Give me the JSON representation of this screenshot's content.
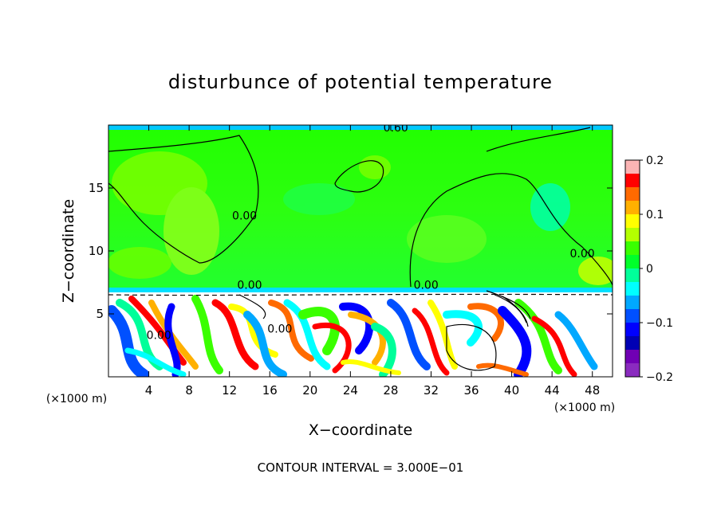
{
  "chart_data": {
    "type": "heatmap",
    "title": "disturbunce of potential temperature",
    "xlabel": "X−coordinate",
    "ylabel": "Z−coordinate",
    "x_unit": "(×1000 m)",
    "xlim": [
      0,
      50
    ],
    "ylim": [
      0,
      20
    ],
    "x_ticks": [
      4,
      8,
      12,
      16,
      20,
      24,
      28,
      32,
      36,
      40,
      44,
      48
    ],
    "y_ticks": [
      5,
      10,
      15
    ],
    "footer": "CONTOUR INTERVAL = 3.000E−01",
    "contour_labels": [
      {
        "text": "0.60",
        "x": 28.5,
        "z": 19.5
      },
      {
        "text": "0.00",
        "x": 13.5,
        "z": 12.5
      },
      {
        "text": "0.00",
        "x": 47.0,
        "z": 9.5
      },
      {
        "text": "0.00",
        "x": 31.5,
        "z": 7.0
      },
      {
        "text": "0.00",
        "x": 14.0,
        "z": 7.0
      },
      {
        "text": "0.00",
        "x": 5.0,
        "z": 3.0
      },
      {
        "text": "0.00",
        "x": 17.0,
        "z": 3.5
      }
    ],
    "colorbar": {
      "min": -0.2,
      "max": 0.2,
      "tick_values": [
        0.2,
        0.1,
        0,
        -0.1,
        -0.2
      ],
      "tick_labels": [
        "0.2",
        "0.1",
        "0",
        "−0.1",
        "−0.2"
      ],
      "colors": [
        "#fbb4b4",
        "#ff0000",
        "#ff6a00",
        "#ffb000",
        "#ffff00",
        "#b4ff00",
        "#3aff00",
        "#00ff2a",
        "#00ff9a",
        "#00ffff",
        "#00a8ff",
        "#0050ff",
        "#0000ff",
        "#0000b4",
        "#7000b4",
        "#8a2bbf"
      ]
    },
    "regions": {
      "upper_layer": {
        "z_range": [
          7,
          19.5
        ],
        "dominant_value": 0.0,
        "color": "#3aff00"
      },
      "lower_layer": {
        "z_range": [
          0,
          7
        ],
        "description_values": [
          -0.2,
          0.2
        ]
      }
    }
  }
}
